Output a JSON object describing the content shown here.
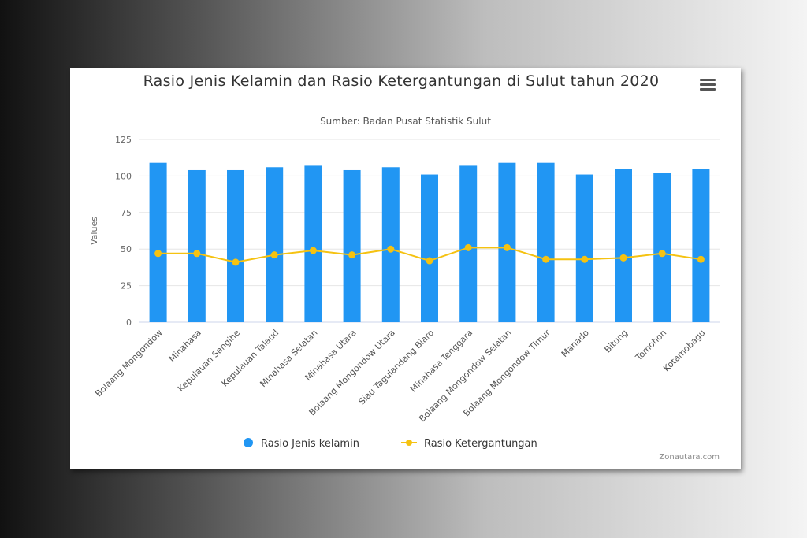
{
  "chart": {
    "title": "Rasio Jenis Kelamin dan Rasio Ketergantungan di Sulut tahun 2020",
    "subtitle": "Sumber: Badan Pusat Statistik Sulut",
    "credit": "Zonautara.com",
    "menu_icon": "hamburger-menu-icon"
  },
  "colors": {
    "bar": "#2196f3",
    "line": "#f5c211",
    "grid": "#e6e6e6"
  },
  "chart_data": {
    "type": "bar",
    "title": "Rasio Jenis Kelamin dan Rasio Ketergantungan di Sulut tahun 2020",
    "subtitle": "Sumber: Badan Pusat Statistik Sulut",
    "xlabel": "",
    "ylabel": "Values",
    "ylim": [
      0,
      125
    ],
    "yticks": [
      0,
      25,
      50,
      75,
      100,
      125
    ],
    "grid": true,
    "legend_position": "bottom-center",
    "categories": [
      "Bolaang Mongondow",
      "Minahasa",
      "Kepulauan Sangihe",
      "Kepulauan Talaud",
      "Minahasa Selatan",
      "Minahasa Utara",
      "Bolaang Mongondow Utara",
      "Siau Tagulandang Biaro",
      "Minahasa Tenggara",
      "Bolaang Mongondow Selatan",
      "Bolaang Mongondow Timur",
      "Manado",
      "Bitung",
      "Tomohon",
      "Kotamobagu"
    ],
    "series": [
      {
        "name": "Rasio Jenis kelamin",
        "type": "bar",
        "values": [
          109,
          104,
          104,
          106,
          107,
          104,
          106,
          101,
          107,
          109,
          109,
          101,
          105,
          102,
          105
        ]
      },
      {
        "name": "Rasio Ketergantungan",
        "type": "line",
        "values": [
          47,
          47,
          41,
          46,
          49,
          46,
          50,
          42,
          51,
          51,
          43,
          43,
          44,
          47,
          43
        ]
      }
    ]
  }
}
